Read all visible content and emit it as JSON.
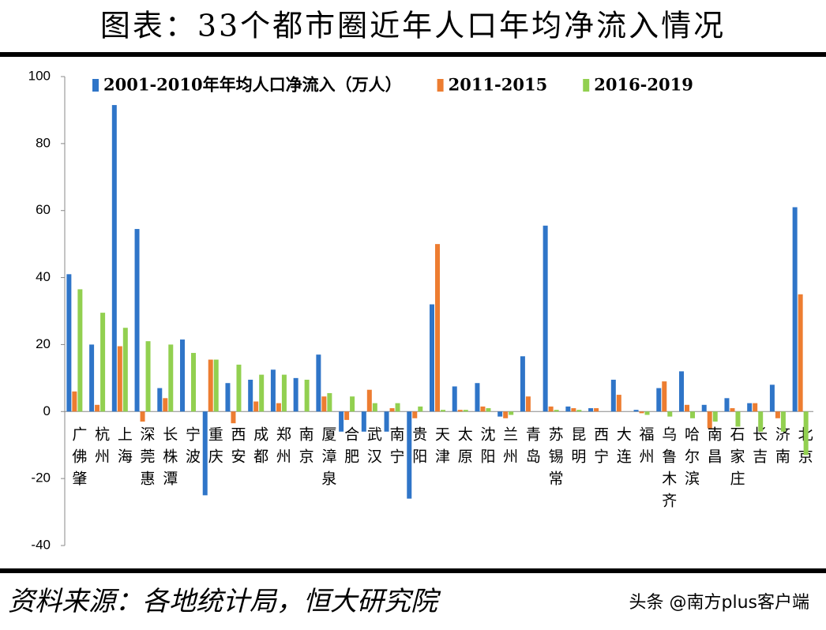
{
  "chart_data": {
    "type": "bar",
    "title": "图表：33个都市圈近年人口年均净流入情况",
    "source": "资料来源：各地统计局，恒大研究院",
    "watermark": "头条 @南方plus客户端",
    "categories": [
      "广佛肇",
      "杭州",
      "上海",
      "深莞惠",
      "长株潭",
      "宁波",
      "重庆",
      "西安",
      "成都",
      "郑州",
      "南京",
      "厦漳泉",
      "合肥",
      "武汉",
      "南宁",
      "贵阳",
      "天津",
      "太原",
      "沈阳",
      "兰州",
      "青岛",
      "苏锡常",
      "昆明",
      "西宁",
      "大连",
      "福州",
      "乌鲁木齐",
      "哈尔滨",
      "南昌",
      "石家庄",
      "长吉",
      "济南",
      "北京"
    ],
    "series": [
      {
        "name": "2001-2010年年均人口净流入（万人）",
        "color": "#2f75c8",
        "values": [
          41,
          20,
          91.5,
          54.5,
          7,
          21.5,
          -25,
          8.5,
          9.5,
          12.5,
          10,
          17,
          -6,
          -6,
          -6,
          -26,
          32,
          7.5,
          8.5,
          -1.5,
          16.5,
          55.5,
          1.5,
          1,
          9.5,
          0.5,
          7,
          12,
          2,
          4,
          2.5,
          8,
          61
        ]
      },
      {
        "name": "2011-2015",
        "color": "#ed7d31",
        "values": [
          6,
          2,
          19.5,
          -3,
          4,
          0,
          15.5,
          -3.5,
          3,
          2.5,
          0,
          4.5,
          -2.5,
          6.5,
          1,
          -2,
          50,
          0.5,
          1.5,
          -2,
          4.5,
          1.5,
          1,
          1,
          5,
          -0.5,
          9,
          2,
          -5,
          1,
          2.5,
          -2,
          35
        ]
      },
      {
        "name": "2016-2019",
        "color": "#92d050",
        "values": [
          36.5,
          29.5,
          25,
          21,
          20,
          17.5,
          15.5,
          14,
          11,
          11,
          9.5,
          5.5,
          4.5,
          2.5,
          2.5,
          1.5,
          0.5,
          0.5,
          1,
          -1,
          0,
          0.5,
          0.5,
          0,
          0,
          -1,
          -1.5,
          -2,
          -3,
          -4.5,
          -6,
          -6,
          -13
        ]
      }
    ],
    "ylim": [
      -40,
      100
    ],
    "yticks": [
      -40,
      -20,
      0,
      20,
      40,
      60,
      80,
      100
    ],
    "grid": false
  }
}
